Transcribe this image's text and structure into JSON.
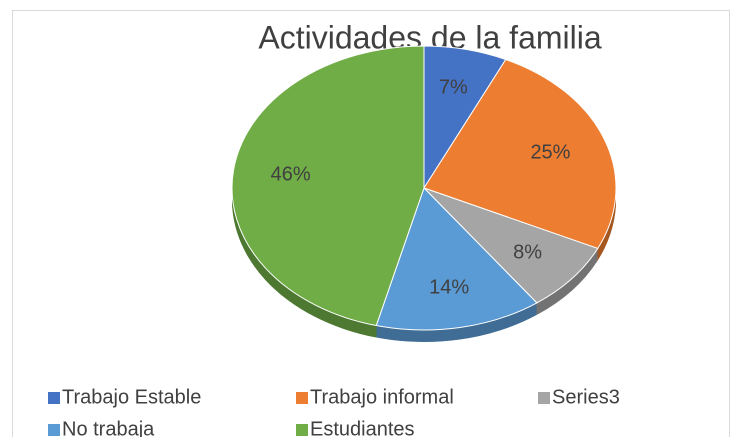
{
  "chart_data": {
    "type": "pie",
    "title": "Actividades de la familia",
    "categories": [
      "Trabajo Estable",
      "Trabajo informal",
      "Series3",
      "No trabaja",
      "Estudiantes"
    ],
    "values": [
      7,
      25,
      8,
      14,
      46
    ],
    "value_labels": [
      "7%",
      "25%",
      "8%",
      "14%",
      "46%"
    ],
    "colors": [
      "#4472c4",
      "#ed7d31",
      "#a5a5a5",
      "#5b9bd5",
      "#70ad47"
    ],
    "legend": "bottom"
  }
}
